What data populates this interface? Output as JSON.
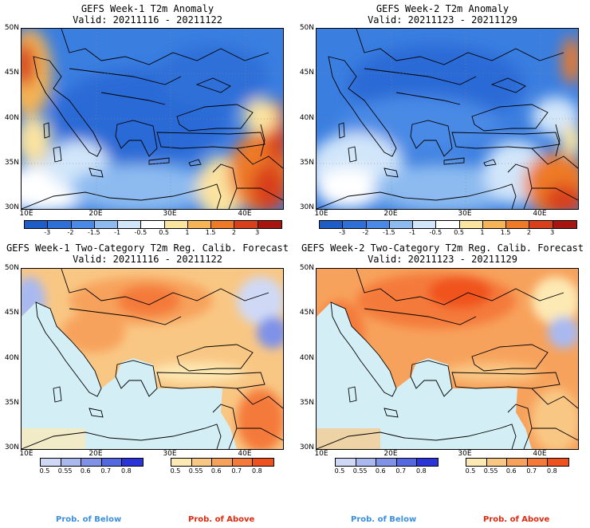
{
  "panels": [
    {
      "title": "GEFS Week-1 T2m Anomaly",
      "valid": "Valid: 20211116 - 20211122",
      "colorbar": {
        "labels": [
          "-3",
          "-2",
          "-1.5",
          "-1",
          "-0.5",
          "0.5",
          "1",
          "1.5",
          "2",
          "3"
        ],
        "colors": [
          "#1e5cc8",
          "#2e6fd8",
          "#4a8ae6",
          "#8dbbf0",
          "#d2e6fa",
          "#ffffff",
          "#fbe3a0",
          "#f5b455",
          "#ee7a28",
          "#d8401c",
          "#a8140f"
        ]
      }
    },
    {
      "title": "GEFS Week-2 T2m Anomaly",
      "valid": "Valid: 20211123 - 20211129",
      "colorbar": {
        "labels": [
          "-3",
          "-2",
          "-1.5",
          "-1",
          "-0.5",
          "0.5",
          "1",
          "1.5",
          "2",
          "3"
        ],
        "colors": [
          "#1e5cc8",
          "#2e6fd8",
          "#4a8ae6",
          "#8dbbf0",
          "#d2e6fa",
          "#ffffff",
          "#fbe3a0",
          "#f5b455",
          "#ee7a28",
          "#d8401c",
          "#a8140f"
        ]
      }
    },
    {
      "title": "GEFS Week-1 Two-Category T2m Reg. Calib. Forecast",
      "valid": "Valid: 20211116 - 20211122",
      "below_colorbar": {
        "labels": [
          "0.5",
          "0.55",
          "0.6",
          "0.7",
          "0.8"
        ],
        "colors": [
          "#cfd9f5",
          "#a9b9f0",
          "#7f92e8",
          "#5468e2",
          "#2a34d8"
        ]
      },
      "above_colorbar": {
        "labels": [
          "0.5",
          "0.55",
          "0.6",
          "0.7",
          "0.8"
        ],
        "colors": [
          "#fde9b4",
          "#f9c784",
          "#f7a25c",
          "#f47a3a",
          "#f0521f"
        ]
      },
      "prob_below": "Prob. of Below",
      "prob_above": "Prob. of Above"
    },
    {
      "title": "GEFS Week-2 Two-Category T2m Reg. Calib. Forecast",
      "valid": "Valid: 20211123 - 20211129",
      "below_colorbar": {
        "labels": [
          "0.5",
          "0.55",
          "0.6",
          "0.7",
          "0.8"
        ],
        "colors": [
          "#cfd9f5",
          "#a9b9f0",
          "#7f92e8",
          "#5468e2",
          "#2a34d8"
        ]
      },
      "above_colorbar": {
        "labels": [
          "0.5",
          "0.55",
          "0.6",
          "0.7",
          "0.8"
        ],
        "colors": [
          "#fde9b4",
          "#f9c784",
          "#f7a25c",
          "#f47a3a",
          "#f0521f"
        ]
      },
      "prob_below": "Prob. of Below",
      "prob_above": "Prob. of Above"
    }
  ],
  "axes": {
    "lat_labels": [
      "50N",
      "45N",
      "40N",
      "35N",
      "30N"
    ],
    "lon_labels": [
      "10E",
      "20E",
      "30E",
      "40E"
    ]
  },
  "colors": {
    "sea_prob": "#d3eef5",
    "below_text": "#3a8fe0",
    "above_text": "#e02a10"
  }
}
